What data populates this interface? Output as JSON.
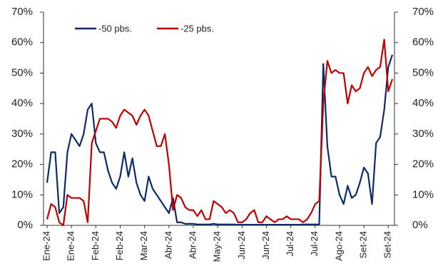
{
  "chart_data": {
    "type": "line",
    "categories": [
      "Ene-24",
      null,
      null,
      null,
      null,
      null,
      "Ene-24",
      null,
      null,
      null,
      null,
      null,
      "Feb-24",
      null,
      null,
      null,
      null,
      null,
      "Feb-24",
      null,
      null,
      null,
      null,
      null,
      "Mar-24",
      null,
      null,
      null,
      null,
      null,
      "Abr-24",
      null,
      null,
      null,
      null,
      null,
      "Abr-24",
      null,
      null,
      null,
      null,
      null,
      "May-24",
      null,
      null,
      null,
      null,
      null,
      "Jun-24",
      null,
      null,
      null,
      null,
      null,
      "Jun-24",
      null,
      null,
      null,
      null,
      null,
      "Jul-24",
      null,
      null,
      null,
      null,
      null,
      "Jul-24",
      null,
      null,
      null,
      null,
      null,
      "Ago-24",
      null,
      null,
      null,
      null,
      null,
      "Set-24",
      null,
      null,
      null,
      null,
      null,
      "Set-24",
      null
    ],
    "series": [
      {
        "name": "-50 pbs.",
        "color": "#0c2b6b",
        "values": [
          14,
          24,
          24,
          4,
          6,
          24,
          30,
          28,
          26,
          30,
          38,
          40,
          27,
          24,
          24,
          18,
          14,
          12,
          16,
          24,
          16,
          22,
          14,
          10,
          8,
          16,
          12,
          10,
          8,
          6,
          4,
          9,
          1,
          1,
          0.5,
          0.5,
          0.5,
          0.3,
          0.3,
          0.3,
          0.3,
          0.5,
          0.3,
          0.3,
          0.3,
          0.3,
          0.3,
          0.2,
          0.2,
          0.2,
          0.2,
          0.2,
          0.2,
          0.2,
          0.2,
          0.2,
          0.2,
          0.2,
          0.2,
          0.2,
          0.2,
          0.2,
          0.2,
          0.3,
          0.3,
          0.3,
          0.3,
          0.3,
          53,
          26,
          16,
          16,
          10,
          7,
          13,
          9,
          10,
          14,
          19,
          17,
          7,
          27,
          29,
          38,
          52,
          56
        ]
      },
      {
        "name": "-25 pbs.",
        "color": "#c00000",
        "values": [
          2,
          7,
          6,
          1,
          0,
          10,
          9,
          9,
          9,
          8,
          1,
          27,
          31,
          35,
          35,
          35,
          34,
          32,
          36,
          38,
          37,
          36,
          33,
          36,
          38,
          36,
          31,
          26,
          26,
          30,
          20,
          5,
          10,
          9,
          6,
          5,
          5,
          3,
          5,
          2,
          2,
          8,
          7,
          6,
          4,
          5,
          4,
          1,
          1,
          2,
          4,
          5,
          1,
          1,
          3,
          2,
          1,
          2,
          2,
          3,
          2,
          2,
          2,
          1,
          2,
          4,
          7,
          8,
          40,
          54,
          50,
          51,
          50,
          50,
          40,
          46,
          44,
          45,
          50,
          52,
          49,
          51,
          52,
          61,
          44,
          48
        ]
      }
    ],
    "ylim": [
      0,
      70
    ],
    "yticks": [
      {
        "value": 0,
        "label": "0%"
      },
      {
        "value": 10,
        "label": "10%"
      },
      {
        "value": 20,
        "label": "20%"
      },
      {
        "value": 30,
        "label": "30%"
      },
      {
        "value": 40,
        "label": "40%"
      },
      {
        "value": 50,
        "label": "50%"
      },
      {
        "value": 60,
        "label": "60%"
      },
      {
        "value": 70,
        "label": "70%"
      }
    ],
    "y2lim": [
      0,
      70
    ],
    "y2ticks": [
      {
        "value": 0,
        "label": "0%"
      },
      {
        "value": 10,
        "label": "10%"
      },
      {
        "value": 20,
        "label": "20%"
      },
      {
        "value": 30,
        "label": "30%"
      },
      {
        "value": 40,
        "label": "40%"
      },
      {
        "value": 50,
        "label": "50%"
      },
      {
        "value": 60,
        "label": "60%"
      },
      {
        "value": 70,
        "label": "70%"
      }
    ]
  }
}
